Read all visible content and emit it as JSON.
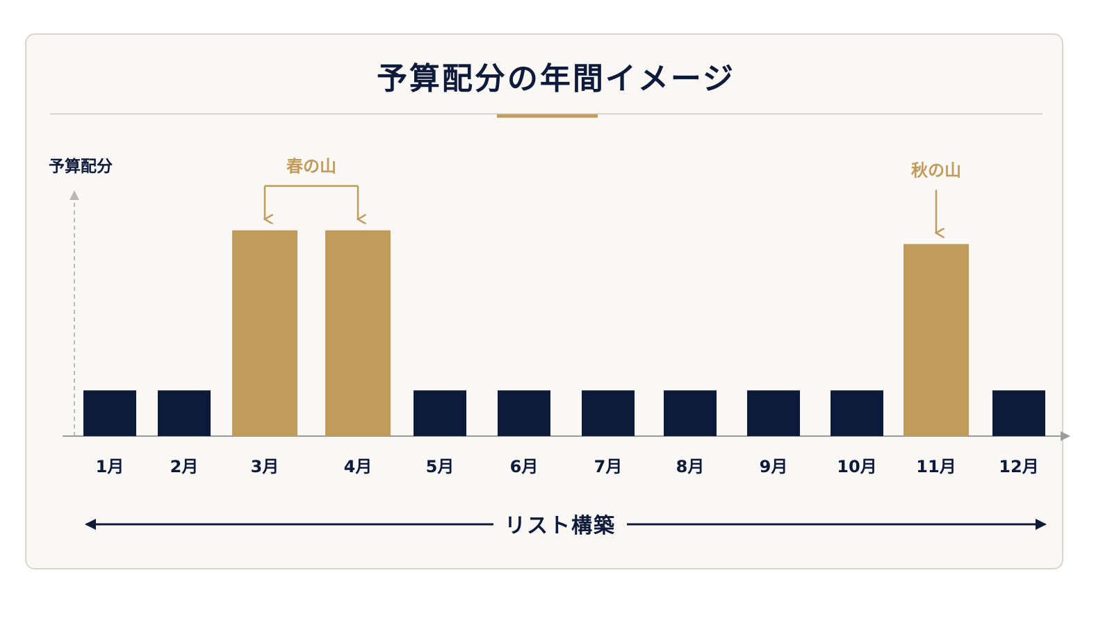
{
  "chart_data": {
    "type": "bar",
    "title": "予算配分の年間イメージ",
    "ylabel": "予算配分",
    "xlabel": "",
    "categories": [
      "1月",
      "2月",
      "3月",
      "4月",
      "5月",
      "6月",
      "7月",
      "8月",
      "9月",
      "10月",
      "11月",
      "12月"
    ],
    "values": [
      1,
      1,
      4.5,
      4.5,
      1,
      1,
      1,
      1,
      1,
      1,
      4.2,
      1
    ],
    "highlighted": [
      false,
      false,
      true,
      true,
      false,
      false,
      false,
      false,
      false,
      false,
      true,
      false
    ],
    "ylim": [
      0,
      6.5
    ],
    "colors": {
      "base": "#0e1a3a",
      "highlight": "#c19b5c",
      "axis": "#9a9a9a",
      "accent": "#c19b5c"
    },
    "annotations": [
      {
        "label": "春の山",
        "categories": [
          "3月",
          "4月"
        ]
      },
      {
        "label": "秋の山",
        "categories": [
          "11月"
        ]
      }
    ],
    "bottom_label": "リスト構築",
    "grid": false,
    "legend": "none"
  }
}
